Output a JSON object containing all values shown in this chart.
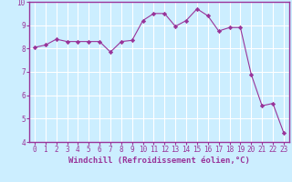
{
  "x": [
    0,
    1,
    2,
    3,
    4,
    5,
    6,
    7,
    8,
    9,
    10,
    11,
    12,
    13,
    14,
    15,
    16,
    17,
    18,
    19,
    20,
    21,
    22,
    23
  ],
  "y": [
    8.05,
    8.15,
    8.4,
    8.3,
    8.3,
    8.3,
    8.3,
    7.85,
    8.3,
    8.35,
    9.2,
    9.5,
    9.5,
    8.95,
    9.2,
    9.7,
    9.4,
    8.75,
    8.9,
    8.9,
    6.9,
    5.55,
    5.65,
    4.4
  ],
  "line_color": "#993399",
  "marker": "D",
  "marker_size": 2.2,
  "background_color": "#cceeff",
  "grid_color": "#ffffff",
  "xlabel": "Windchill (Refroidissement éolien,°C)",
  "ylim": [
    4,
    10
  ],
  "xlim": [
    -0.5,
    23.5
  ],
  "yticks": [
    4,
    5,
    6,
    7,
    8,
    9,
    10
  ],
  "xticks": [
    0,
    1,
    2,
    3,
    4,
    5,
    6,
    7,
    8,
    9,
    10,
    11,
    12,
    13,
    14,
    15,
    16,
    17,
    18,
    19,
    20,
    21,
    22,
    23
  ],
  "tick_fontsize": 5.5,
  "xlabel_fontsize": 6.5,
  "spine_color": "#993399"
}
